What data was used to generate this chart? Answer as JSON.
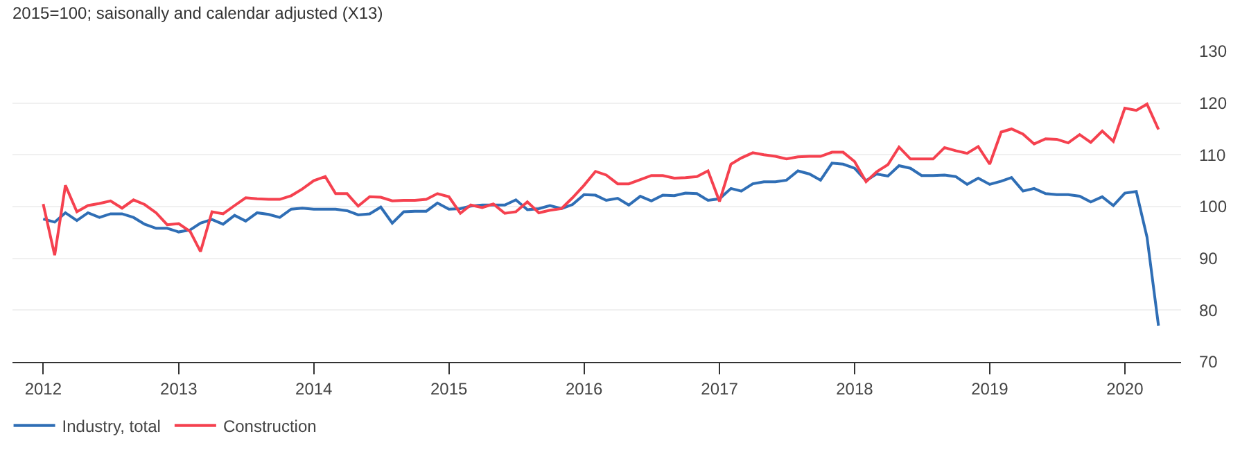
{
  "chart_data": {
    "type": "line",
    "title": "2015=100; saisonally and calendar adjusted (X13)",
    "x": [
      "2012-01",
      "2012-02",
      "2012-03",
      "2012-04",
      "2012-05",
      "2012-06",
      "2012-07",
      "2012-08",
      "2012-09",
      "2012-10",
      "2012-11",
      "2012-12",
      "2013-01",
      "2013-02",
      "2013-03",
      "2013-04",
      "2013-05",
      "2013-06",
      "2013-07",
      "2013-08",
      "2013-09",
      "2013-10",
      "2013-11",
      "2013-12",
      "2014-01",
      "2014-02",
      "2014-03",
      "2014-04",
      "2014-05",
      "2014-06",
      "2014-07",
      "2014-08",
      "2014-09",
      "2014-10",
      "2014-11",
      "2014-12",
      "2015-01",
      "2015-02",
      "2015-03",
      "2015-04",
      "2015-05",
      "2015-06",
      "2015-07",
      "2015-08",
      "2015-09",
      "2015-10",
      "2015-11",
      "2015-12",
      "2016-01",
      "2016-02",
      "2016-03",
      "2016-04",
      "2016-05",
      "2016-06",
      "2016-07",
      "2016-08",
      "2016-09",
      "2016-10",
      "2016-11",
      "2016-12",
      "2017-01",
      "2017-02",
      "2017-03",
      "2017-04",
      "2017-05",
      "2017-06",
      "2017-07",
      "2017-08",
      "2017-09",
      "2017-10",
      "2017-11",
      "2017-12",
      "2018-01",
      "2018-02",
      "2018-03",
      "2018-04",
      "2018-05",
      "2018-06",
      "2018-07",
      "2018-08",
      "2018-09",
      "2018-10",
      "2018-11",
      "2018-12",
      "2019-01",
      "2019-02",
      "2019-03",
      "2019-04",
      "2019-05",
      "2019-06",
      "2019-07",
      "2019-08",
      "2019-09",
      "2019-10",
      "2019-11",
      "2019-12",
      "2020-01",
      "2020-02",
      "2020-03",
      "2020-04"
    ],
    "series": [
      {
        "name": "Industry, total",
        "color": "#2f6eb5",
        "values": [
          97.6,
          97.0,
          98.8,
          97.3,
          98.8,
          97.9,
          98.6,
          98.6,
          97.9,
          96.6,
          95.8,
          95.8,
          95.1,
          95.5,
          96.8,
          97.5,
          96.6,
          98.3,
          97.2,
          98.8,
          98.5,
          97.9,
          99.5,
          99.7,
          99.5,
          99.5,
          99.5,
          99.2,
          98.4,
          98.6,
          99.9,
          96.8,
          99.0,
          99.1,
          99.1,
          100.7,
          99.5,
          99.6,
          100.1,
          100.3,
          100.3,
          100.3,
          101.3,
          99.4,
          99.6,
          100.2,
          99.6,
          100.4,
          102.3,
          102.2,
          101.2,
          101.6,
          100.3,
          102.0,
          101.1,
          102.2,
          102.1,
          102.6,
          102.5,
          101.2,
          101.5,
          103.5,
          103.0,
          104.4,
          104.8,
          104.8,
          105.1,
          106.9,
          106.3,
          105.1,
          108.4,
          108.2,
          107.4,
          105.0,
          106.3,
          105.9,
          107.9,
          107.4,
          106.0,
          106.0,
          106.1,
          105.8,
          104.3,
          105.5,
          104.3,
          104.9,
          105.6,
          103.0,
          103.5,
          102.5,
          102.3,
          102.3,
          102.0,
          100.9,
          101.9,
          100.2,
          102.6,
          102.9,
          94.1,
          77.0
        ]
      },
      {
        "name": "Construction",
        "color": "#f5414f",
        "values": [
          100.5,
          90.6,
          104.1,
          99.0,
          100.2,
          100.6,
          101.1,
          99.7,
          101.3,
          100.4,
          98.8,
          96.5,
          96.7,
          95.2,
          91.3,
          99.0,
          98.6,
          100.2,
          101.7,
          101.5,
          101.4,
          101.4,
          102.1,
          103.4,
          105.0,
          105.8,
          102.5,
          102.5,
          100.1,
          101.9,
          101.8,
          101.1,
          101.2,
          101.2,
          101.4,
          102.5,
          101.9,
          98.7,
          100.3,
          99.8,
          100.5,
          98.7,
          99.0,
          100.9,
          98.8,
          99.3,
          99.6,
          101.7,
          104.1,
          106.8,
          106.1,
          104.4,
          104.4,
          105.2,
          106.0,
          106.0,
          105.5,
          105.6,
          105.8,
          106.9,
          101.0,
          108.2,
          109.4,
          110.4,
          110.0,
          109.7,
          109.2,
          109.6,
          109.7,
          109.7,
          110.5,
          110.5,
          108.7,
          104.8,
          106.7,
          108.1,
          111.5,
          109.2,
          109.2,
          109.2,
          111.4,
          110.8,
          110.3,
          111.6,
          108.2,
          114.4,
          115.0,
          114.0,
          112.1,
          113.1,
          113.0,
          112.3,
          113.9,
          112.4,
          114.6,
          112.6,
          119.0,
          118.6,
          119.8,
          114.9
        ]
      }
    ],
    "xlim": [
      "2011-10-10",
      "2020-06-01"
    ],
    "xticks": [
      {
        "value": "2012-01-01",
        "label": "2012"
      },
      {
        "value": "2013-01-01",
        "label": "2013"
      },
      {
        "value": "2014-01-01",
        "label": "2014"
      },
      {
        "value": "2015-01-01",
        "label": "2015"
      },
      {
        "value": "2016-01-01",
        "label": "2016"
      },
      {
        "value": "2017-01-01",
        "label": "2017"
      },
      {
        "value": "2018-01-01",
        "label": "2018"
      },
      {
        "value": "2019-01-01",
        "label": "2019"
      },
      {
        "value": "2020-01-01",
        "label": "2020"
      }
    ],
    "ylim": [
      70,
      130
    ],
    "yticks": [
      70,
      80,
      90,
      100,
      110,
      120,
      130
    ],
    "grid": "y",
    "legend": "bottom left",
    "marker": "none",
    "line_style": "solid"
  }
}
